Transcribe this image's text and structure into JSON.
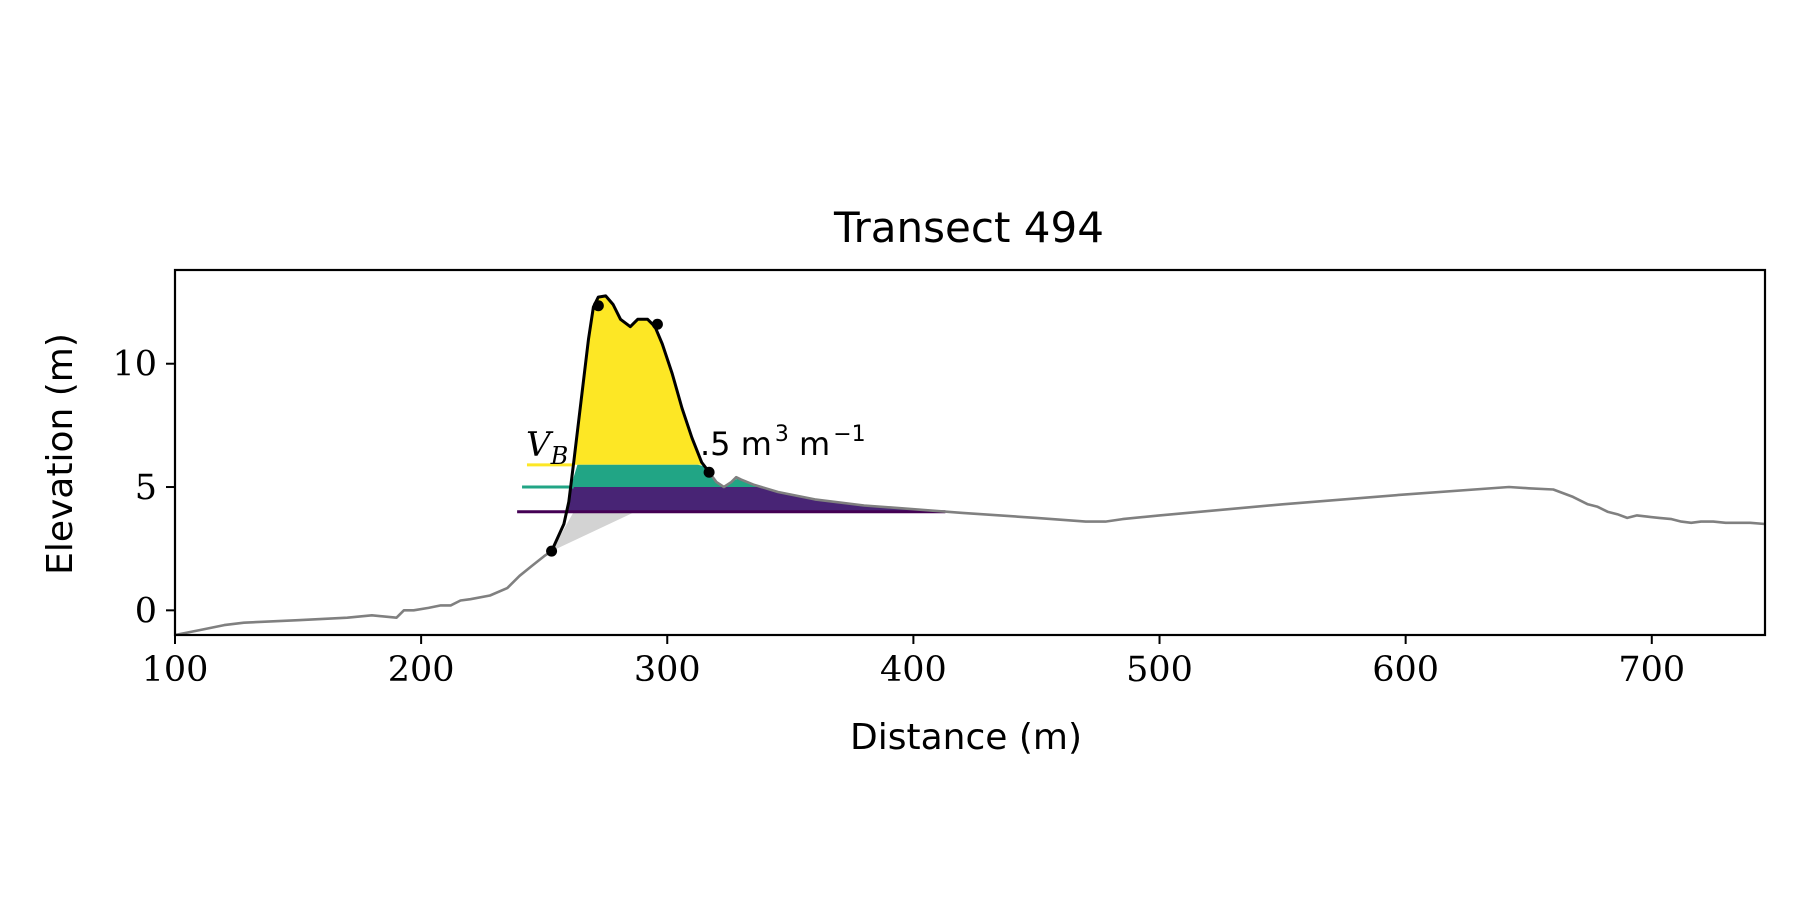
{
  "chart_data": {
    "type": "line",
    "title": "Transect 494",
    "xlabel": "Distance (m)",
    "ylabel": "Elevation (m)",
    "xlim": [
      100,
      746
    ],
    "ylim": [
      -1.0,
      13.8
    ],
    "xticks": [
      100,
      200,
      300,
      400,
      500,
      600,
      700
    ],
    "yticks": [
      0,
      5,
      10
    ],
    "grid": false,
    "annotation": {
      "text": "V_B = …5 m^3 m^-1",
      "symbol": "V",
      "symbol_sub": "B",
      "value_text": ".5 m",
      "unit_tail": " m",
      "sup1": "3",
      "sup2": "−1"
    },
    "series": [
      {
        "role": "profile",
        "color": "#808080",
        "x": [
          100,
          110,
          120,
          128,
          150,
          170,
          180,
          190,
          193,
          197,
          203,
          208,
          212,
          216,
          220,
          228,
          235,
          240,
          245,
          250,
          253
        ],
        "y": [
          -1.0,
          -0.8,
          -0.6,
          -0.5,
          -0.4,
          -0.3,
          -0.2,
          -0.3,
          0.0,
          0.0,
          0.1,
          0.2,
          0.2,
          0.4,
          0.45,
          0.6,
          0.9,
          1.4,
          1.8,
          2.2,
          2.4
        ]
      },
      {
        "role": "profile",
        "color": "#808080",
        "x": [
          317,
          320,
          323,
          326,
          328,
          330,
          335,
          345,
          360,
          380,
          400,
          420,
          450,
          470,
          478,
          485,
          500,
          550,
          600,
          642,
          650,
          660,
          668,
          674,
          678,
          682,
          686,
          690,
          694,
          698,
          703,
          708,
          712,
          716,
          720,
          725,
          730,
          740,
          746
        ],
        "y": [
          5.6,
          5.2,
          5.0,
          5.2,
          5.4,
          5.3,
          5.1,
          4.8,
          4.5,
          4.25,
          4.1,
          3.95,
          3.75,
          3.6,
          3.6,
          3.7,
          3.85,
          4.3,
          4.7,
          5.0,
          4.95,
          4.9,
          4.6,
          4.3,
          4.2,
          4.0,
          3.9,
          3.75,
          3.85,
          3.8,
          3.75,
          3.7,
          3.6,
          3.55,
          3.6,
          3.6,
          3.55,
          3.55,
          3.5
        ]
      },
      {
        "role": "dune",
        "color": "#000000",
        "x": [
          253,
          258,
          260,
          262,
          265,
          268,
          270,
          272,
          275,
          278,
          281,
          285,
          288,
          292,
          295,
          298,
          302,
          306,
          310,
          314,
          317
        ],
        "y": [
          2.4,
          3.5,
          4.4,
          6.0,
          8.5,
          11.0,
          12.3,
          12.7,
          12.75,
          12.4,
          11.8,
          11.5,
          11.8,
          11.8,
          11.5,
          10.8,
          9.6,
          8.2,
          7.0,
          6.0,
          5.6
        ]
      }
    ],
    "key_points": {
      "x": [
        253,
        272,
        296,
        317
      ],
      "y": [
        2.4,
        12.35,
        11.6,
        5.6
      ]
    },
    "bands": [
      {
        "color": "#fde725",
        "legend_x": [
          243,
          262
        ],
        "y_bottom": 5.9,
        "label": "yellow"
      },
      {
        "color": "#21a585",
        "legend_x": [
          241,
          262
        ],
        "y_bottom": 5.0,
        "label": "teal"
      },
      {
        "color": "#440154",
        "fill": "#482475",
        "legend_x": [
          239,
          413
        ],
        "y_bottom": 4.0,
        "label": "purple"
      }
    ]
  }
}
